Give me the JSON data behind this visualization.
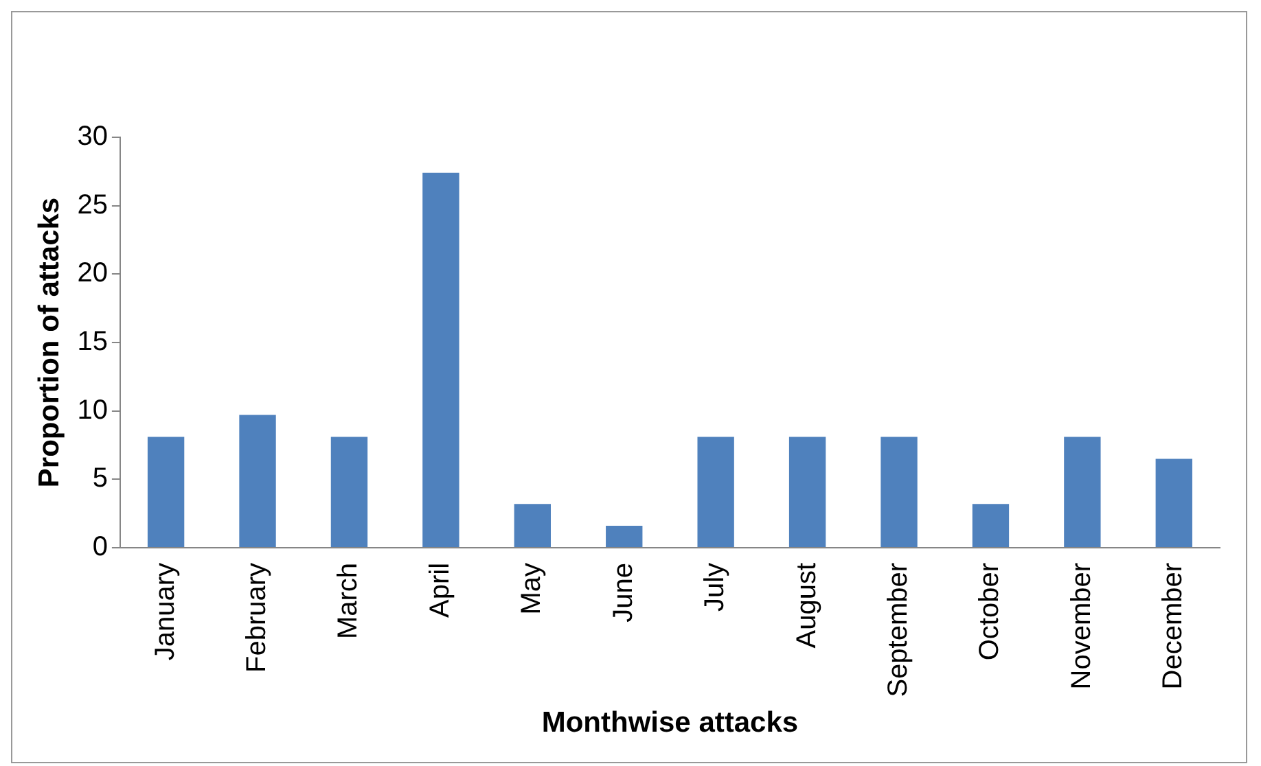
{
  "chart_data": {
    "type": "bar",
    "xlabel": "Monthwise attacks",
    "ylabel": "Proportion of attacks",
    "categories": [
      "January",
      "February",
      "March",
      "April",
      "May",
      "June",
      "July",
      "August",
      "September",
      "October",
      "November",
      "December"
    ],
    "values": [
      8.1,
      9.7,
      8.1,
      27.4,
      3.2,
      1.6,
      8.1,
      8.1,
      8.1,
      3.2,
      8.1,
      6.5
    ],
    "color": "#4f81bd",
    "ylim": [
      0,
      30
    ],
    "yticks": [
      0,
      5,
      10,
      15,
      20,
      25,
      30
    ],
    "grid": false,
    "legend": false
  }
}
